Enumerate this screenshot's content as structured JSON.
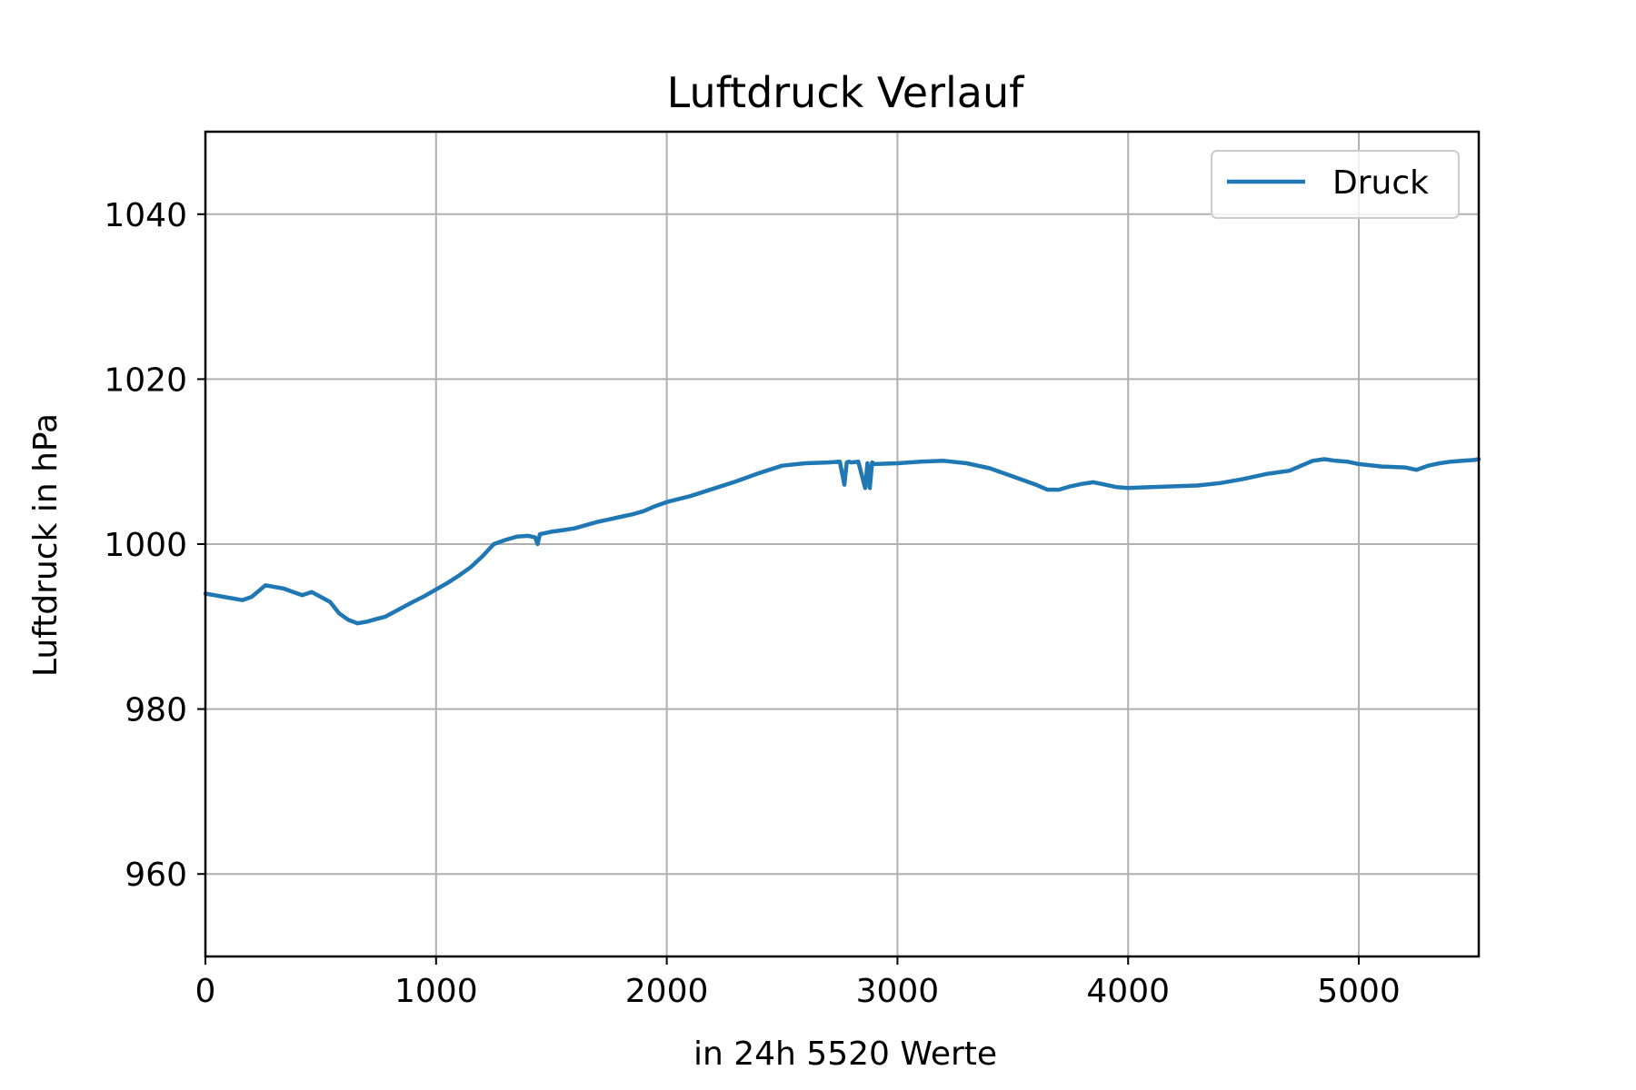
{
  "chart_data": {
    "type": "line",
    "title": "Luftdruck Verlauf",
    "xlabel": "in 24h 5520 Werte",
    "ylabel": "Luftdruck in hPa",
    "xlim": [
      0,
      5520
    ],
    "ylim": [
      950,
      1050
    ],
    "xticks": [
      0,
      1000,
      2000,
      3000,
      4000,
      5000
    ],
    "yticks": [
      960,
      980,
      1000,
      1020,
      1040
    ],
    "grid": true,
    "legend_position": "top-right",
    "series": [
      {
        "name": "Druck",
        "color": "#1f77b4",
        "x": [
          0,
          40,
          80,
          120,
          160,
          200,
          230,
          260,
          300,
          340,
          380,
          420,
          460,
          500,
          540,
          580,
          620,
          660,
          700,
          740,
          780,
          820,
          860,
          900,
          950,
          1000,
          1050,
          1100,
          1150,
          1200,
          1250,
          1300,
          1350,
          1400,
          1430,
          1440,
          1450,
          1500,
          1550,
          1600,
          1650,
          1700,
          1750,
          1800,
          1850,
          1900,
          1950,
          2000,
          2100,
          2200,
          2300,
          2400,
          2500,
          2600,
          2700,
          2750,
          2770,
          2780,
          2790,
          2800,
          2830,
          2860,
          2870,
          2880,
          2890,
          2900,
          3000,
          3100,
          3200,
          3300,
          3400,
          3500,
          3600,
          3650,
          3700,
          3750,
          3800,
          3850,
          3900,
          3950,
          4000,
          4100,
          4200,
          4300,
          4400,
          4500,
          4600,
          4700,
          4750,
          4800,
          4850,
          4900,
          4950,
          5000,
          5100,
          5200,
          5250,
          5300,
          5350,
          5400,
          5450,
          5500,
          5520
        ],
        "y": [
          994.0,
          993.8,
          993.6,
          993.4,
          993.2,
          993.6,
          994.3,
          995.0,
          994.8,
          994.6,
          994.2,
          993.8,
          994.2,
          993.6,
          993.0,
          991.6,
          990.8,
          990.4,
          990.6,
          990.9,
          991.2,
          991.8,
          992.4,
          993.0,
          993.7,
          994.5,
          995.3,
          996.2,
          997.2,
          998.5,
          1000.0,
          1000.5,
          1000.9,
          1001.0,
          1000.8,
          1000.0,
          1001.2,
          1001.5,
          1001.7,
          1001.9,
          1002.3,
          1002.7,
          1003.0,
          1003.3,
          1003.6,
          1004.0,
          1004.6,
          1005.1,
          1005.8,
          1006.7,
          1007.6,
          1008.6,
          1009.5,
          1009.8,
          1009.9,
          1010.0,
          1007.2,
          1009.9,
          1010.0,
          1009.9,
          1010.0,
          1006.8,
          1009.8,
          1006.8,
          1009.9,
          1009.7,
          1009.8,
          1010.0,
          1010.1,
          1009.8,
          1009.2,
          1008.2,
          1007.2,
          1006.6,
          1006.6,
          1007.0,
          1007.3,
          1007.5,
          1007.2,
          1006.9,
          1006.8,
          1006.9,
          1007.0,
          1007.1,
          1007.4,
          1007.9,
          1008.5,
          1008.9,
          1009.5,
          1010.1,
          1010.3,
          1010.1,
          1010.0,
          1009.7,
          1009.4,
          1009.3,
          1009.0,
          1009.5,
          1009.8,
          1010.0,
          1010.1,
          1010.2,
          1010.3
        ]
      }
    ]
  }
}
